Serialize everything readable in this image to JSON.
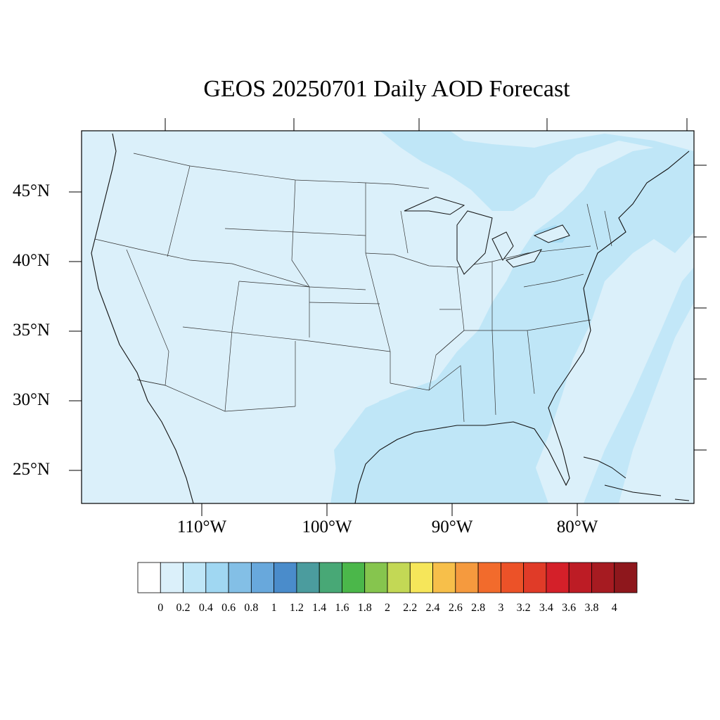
{
  "title": "GEOS 20250701 Daily AOD Forecast",
  "map": {
    "region": "Contiguous United States",
    "variable": "Aerosol Optical Depth",
    "background_color": "#dbf0fa",
    "elevated_aod_color": "#bfe6f7",
    "moderate_aod_color": "#a8dcf4",
    "latitude_labels": [
      "45°N",
      "40°N",
      "35°N",
      "30°N",
      "25°N"
    ],
    "longitude_labels": [
      "110°W",
      "100°W",
      "90°W",
      "80°W"
    ],
    "lon_range": [
      -119,
      -71
    ],
    "lat_range": [
      22.5,
      49.5
    ]
  },
  "colorbar": {
    "labels": [
      "0",
      "0.2",
      "0.4",
      "0.6",
      "0.8",
      "1",
      "1.2",
      "1.4",
      "1.6",
      "1.8",
      "2",
      "2.2",
      "2.4",
      "2.6",
      "2.8",
      "3",
      "3.2",
      "3.4",
      "3.6",
      "3.8",
      "4"
    ],
    "colors": [
      "#ffffff",
      "#dbf0fa",
      "#bfe6f7",
      "#a0d7f2",
      "#83bfe6",
      "#68a8dc",
      "#4a8ccb",
      "#4b9c9e",
      "#48a876",
      "#4bb74a",
      "#86c54e",
      "#c3d855",
      "#f6e65a",
      "#f7bf4a",
      "#f59a3e",
      "#f26b2c",
      "#ec5228",
      "#e03b28",
      "#d42029",
      "#bd1c25",
      "#a61b21",
      "#8e171c"
    ]
  }
}
